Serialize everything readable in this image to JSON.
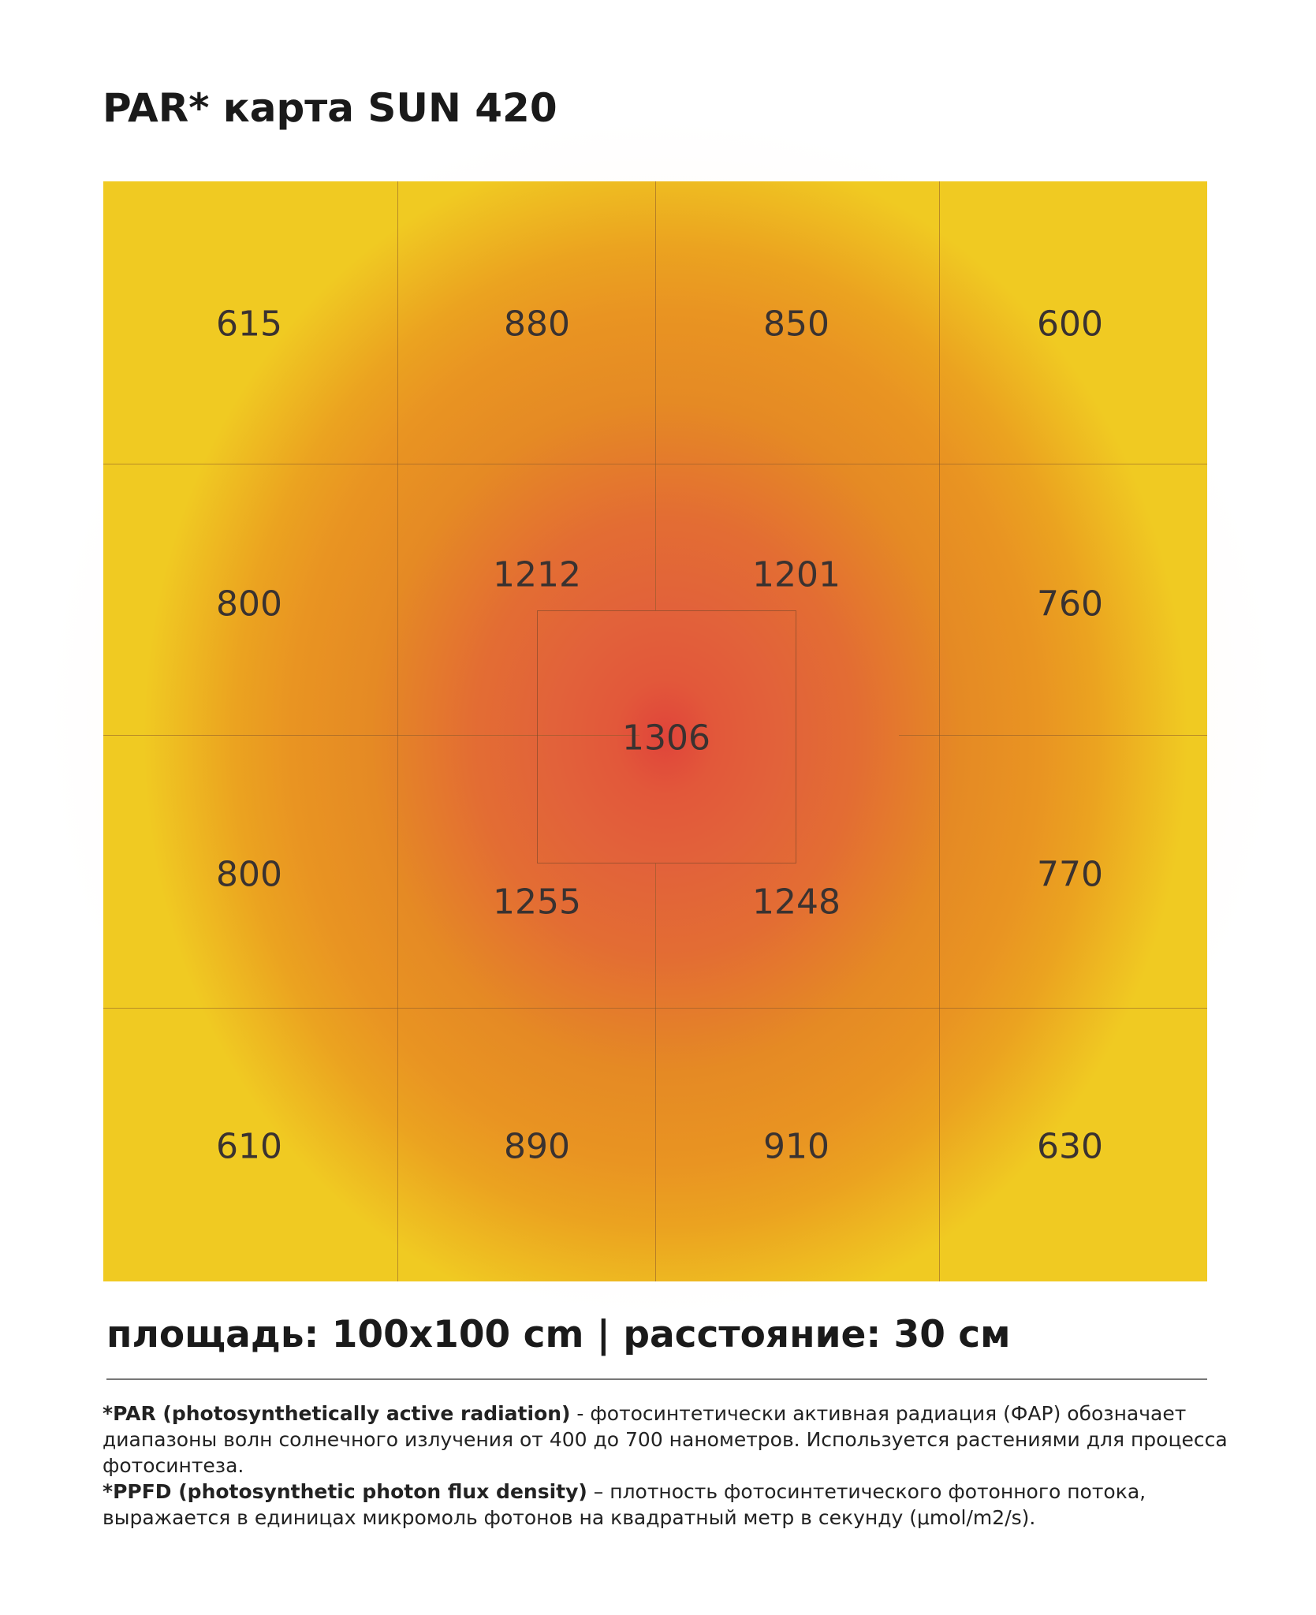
{
  "title": "PAR* карта SUN 420",
  "subtitle": "площадь: 100x100 cm | расстояние: 30 см",
  "colors": {
    "edge": "#F0CA22",
    "mid": "#E99422",
    "inner": "#E2623A",
    "center": "#E0443A"
  },
  "chart_data": {
    "type": "heatmap",
    "grid": [
      [
        615,
        880,
        850,
        600
      ],
      [
        800,
        1212,
        1201,
        760
      ],
      [
        800,
        1255,
        1248,
        770
      ],
      [
        610,
        890,
        910,
        630
      ]
    ],
    "center_value": 1306
  },
  "notes": {
    "par_term": "*PAR (photosynthetically active radiation)",
    "par_text": " - фотосинтетически активная радиация (ФАР) обозначает диапазоны волн солнечного излучения от 400 до 700 нанометров. Используется растениями для процесса фотосинтеза.",
    "ppfd_term": "*PPFD (photosynthetic photon flux density)",
    "ppfd_text": " – плотность фотосинтетического фотонного потока, выражается в единицах микромоль фотонов на квадратный метр в секунду (μmol/m2/s)."
  }
}
